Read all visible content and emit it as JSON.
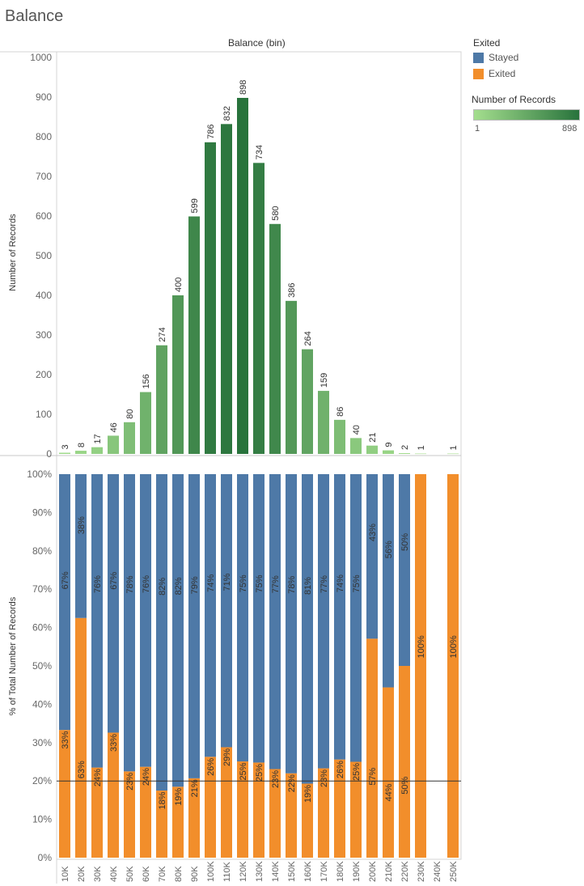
{
  "title": "Balance",
  "column_header": "Balance (bin)",
  "legend": {
    "color": {
      "title": "Exited",
      "items": [
        {
          "label": "Stayed",
          "color": "#4e79a7"
        },
        {
          "label": "Exited",
          "color": "#f28e2b"
        }
      ]
    },
    "gradient": {
      "title": "Number of Records",
      "min_label": "1",
      "max_label": "898",
      "color_low": "#a4de8e",
      "color_high": "#28733c"
    }
  },
  "chart_data": [
    {
      "type": "bar",
      "ylabel": "Number of Records",
      "ylim": [
        0,
        1000
      ],
      "yticks": [
        0,
        100,
        200,
        300,
        400,
        500,
        600,
        700,
        800,
        900,
        1000
      ],
      "categories": [
        "10K",
        "20K",
        "30K",
        "40K",
        "50K",
        "60K",
        "70K",
        "80K",
        "90K",
        "100K",
        "110K",
        "120K",
        "130K",
        "140K",
        "150K",
        "160K",
        "170K",
        "180K",
        "190K",
        "200K",
        "210K",
        "220K",
        "230K",
        "240K",
        "250K"
      ],
      "values": [
        3,
        8,
        17,
        46,
        80,
        156,
        274,
        400,
        599,
        786,
        832,
        898,
        734,
        580,
        386,
        264,
        159,
        86,
        40,
        21,
        9,
        2,
        1,
        null,
        1
      ],
      "data_labels": [
        "3",
        "8",
        "17",
        "46",
        "80",
        "156",
        "274",
        "400",
        "599",
        "786",
        "832",
        "898",
        "734",
        "580",
        "386",
        "264",
        "159",
        "86",
        "40",
        "21",
        "9",
        "2",
        "1",
        "",
        "1"
      ],
      "grid": false
    },
    {
      "type": "bar",
      "stacked": true,
      "ylabel": "% of Total Number of Records",
      "ylim": [
        0,
        100
      ],
      "yticks": [
        "0%",
        "10%",
        "20%",
        "30%",
        "40%",
        "50%",
        "60%",
        "70%",
        "80%",
        "90%",
        "100%"
      ],
      "reference_line": 20,
      "categories": [
        "10K",
        "20K",
        "30K",
        "40K",
        "50K",
        "60K",
        "70K",
        "80K",
        "90K",
        "100K",
        "110K",
        "120K",
        "130K",
        "140K",
        "150K",
        "160K",
        "170K",
        "180K",
        "190K",
        "200K",
        "210K",
        "220K",
        "230K",
        "240K",
        "250K"
      ],
      "series": [
        {
          "name": "Exited",
          "values": [
            33.3,
            62.5,
            23.5,
            32.6,
            22.5,
            23.7,
            17.5,
            18.5,
            20.7,
            26.3,
            28.8,
            25.1,
            24.8,
            23.1,
            22.0,
            19.3,
            23.3,
            25.6,
            25.0,
            57.1,
            44.4,
            50.0,
            100,
            null,
            100
          ],
          "labels": [
            "33%",
            "63%",
            "24%",
            "33%",
            "23%",
            "24%",
            "18%",
            "19%",
            "21%",
            "26%",
            "29%",
            "25%",
            "25%",
            "23%",
            "22%",
            "19%",
            "23%",
            "26%",
            "25%",
            "57%",
            "44%",
            "50%",
            "100%",
            "",
            "100%"
          ]
        },
        {
          "name": "Stayed",
          "values": [
            66.7,
            37.5,
            76.5,
            67.4,
            77.5,
            76.3,
            82.5,
            81.5,
            79.3,
            73.7,
            71.2,
            74.9,
            75.2,
            76.9,
            78.0,
            80.7,
            76.7,
            74.4,
            75.0,
            42.9,
            55.6,
            50.0,
            0,
            null,
            0
          ],
          "labels": [
            "67%",
            "38%",
            "76%",
            "67%",
            "78%",
            "76%",
            "82%",
            "82%",
            "79%",
            "74%",
            "71%",
            "75%",
            "75%",
            "77%",
            "78%",
            "81%",
            "77%",
            "74%",
            "75%",
            "43%",
            "56%",
            "50%",
            "",
            "",
            ""
          ]
        }
      ]
    }
  ]
}
